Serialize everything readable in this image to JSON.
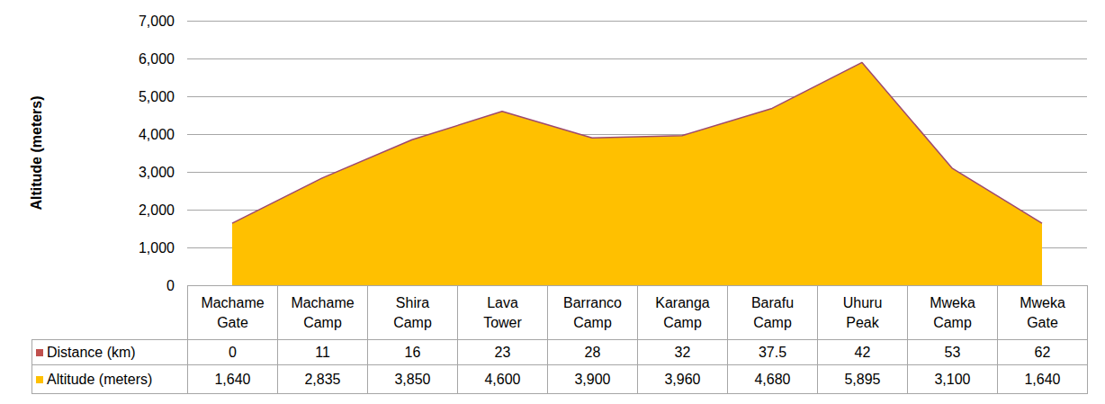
{
  "chart_data": {
    "type": "area",
    "categories": [
      "Machame Gate",
      "Machame Camp",
      "Shira Camp",
      "Lava Tower",
      "Barranco Camp",
      "Karanga Camp",
      "Barafu Camp",
      "Uhuru Peak",
      "Mweka Camp",
      "Mweka Gate"
    ],
    "ylabel": "Altitude (meters)",
    "ylim": [
      0,
      7000
    ],
    "yticks": [
      0,
      {
        "value": 1000,
        "label": "1,000"
      },
      {
        "value": 2000,
        "label": "2,000"
      },
      {
        "value": 3000,
        "label": "3,000"
      },
      {
        "value": 4000,
        "label": "4,000"
      },
      {
        "value": 5000,
        "label": "5,000"
      },
      {
        "value": 6000,
        "label": "6,000"
      },
      {
        "value": 7000,
        "label": "7,000"
      }
    ],
    "grid": true,
    "series": [
      {
        "name": "Distance (km)",
        "color": "#c0504d",
        "type": "table",
        "values": [
          0,
          11,
          16,
          23,
          28,
          32,
          37.5,
          42,
          53,
          62
        ]
      },
      {
        "name": "Altitude (meters)",
        "color": "#ffc000",
        "type": "area",
        "values": [
          1640,
          2835,
          3850,
          4600,
          3900,
          3960,
          4680,
          5895,
          3100,
          1640
        ],
        "value_labels": [
          "1,640",
          "2,835",
          "3,850",
          "4,600",
          "3,900",
          "3,960",
          "4,680",
          "5,895",
          "3,100",
          "1,640"
        ]
      }
    ]
  }
}
